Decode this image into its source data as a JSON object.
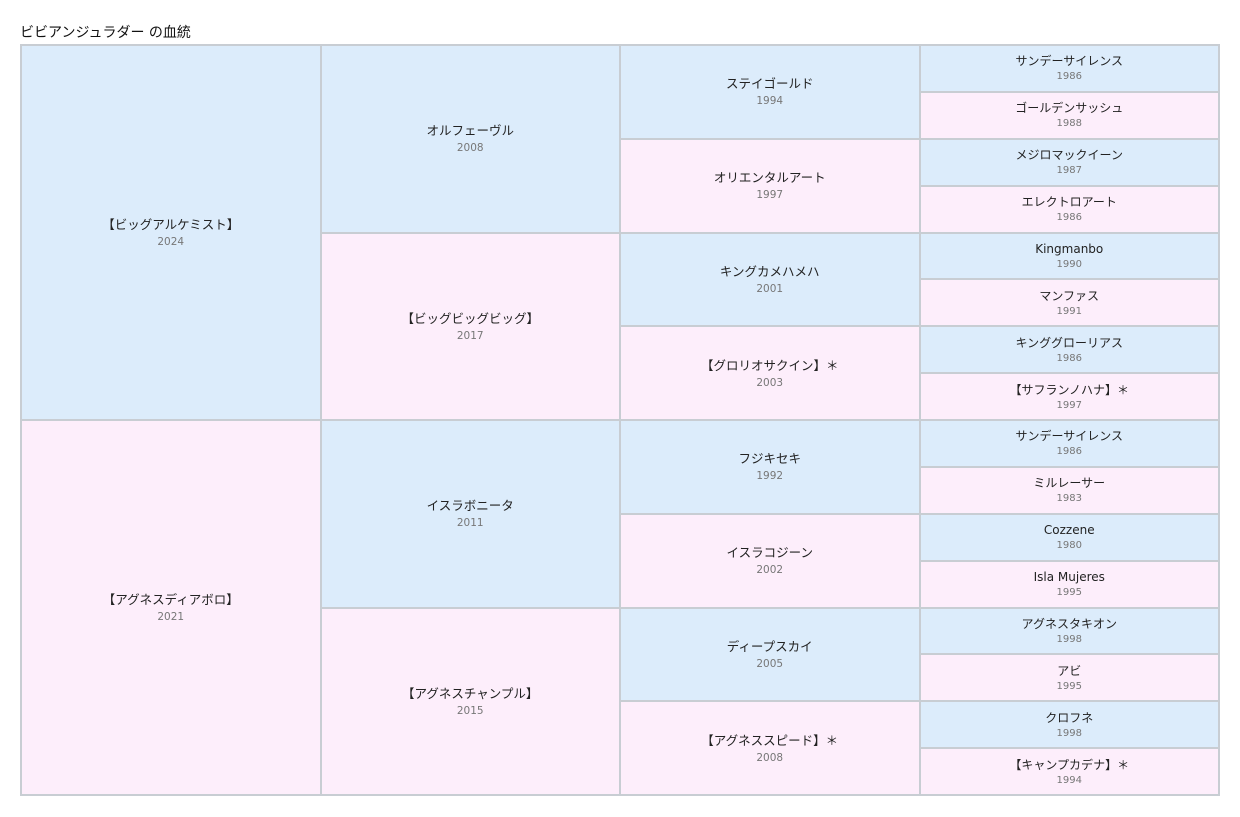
{
  "title": "ビビアンジュラダー の血統",
  "sire": {
    "name": "【ビッグアルケミスト】",
    "year": "2024",
    "sire": {
      "name": "オルフェーヴル",
      "year": "2008",
      "sire": {
        "name": "ステイゴールド",
        "year": "1994",
        "sire": {
          "name": "サンデーサイレンス",
          "year": "1986"
        },
        "dam": {
          "name": "ゴールデンサッシュ",
          "year": "1988"
        }
      },
      "dam": {
        "name": "オリエンタルアート",
        "year": "1997",
        "sire": {
          "name": "メジロマックイーン",
          "year": "1987"
        },
        "dam": {
          "name": "エレクトロアート",
          "year": "1986"
        }
      }
    },
    "dam": {
      "name": "【ビッグビッグビッグ】",
      "year": "2017",
      "sire": {
        "name": "キングカメハメハ",
        "year": "2001",
        "sire": {
          "name": "Kingmanbo",
          "year": "1990"
        },
        "dam": {
          "name": "マンファス",
          "year": "1991"
        }
      },
      "dam": {
        "name": "【グロリオサクイン】＊",
        "year": "2003",
        "sire": {
          "name": "キンググローリアス",
          "year": "1986"
        },
        "dam": {
          "name": "【サフランノハナ】＊",
          "year": "1997"
        }
      }
    }
  },
  "dam": {
    "name": "【アグネスディアボロ】",
    "year": "2021",
    "sire": {
      "name": "イスラボニータ",
      "year": "2011",
      "sire": {
        "name": "フジキセキ",
        "year": "1992",
        "sire": {
          "name": "サンデーサイレンス",
          "year": "1986"
        },
        "dam": {
          "name": "ミルレーサー",
          "year": "1983"
        }
      },
      "dam": {
        "name": "イスラコジーン",
        "year": "2002",
        "sire": {
          "name": "Cozzene",
          "year": "1980"
        },
        "dam": {
          "name": "Isla Mujeres",
          "year": "1995"
        }
      }
    },
    "dam": {
      "name": "【アグネスチャンプル】",
      "year": "2015",
      "sire": {
        "name": "ディープスカイ",
        "year": "2005",
        "sire": {
          "name": "アグネスタキオン",
          "year": "1998"
        },
        "dam": {
          "name": "アビ",
          "year": "1995"
        }
      },
      "dam": {
        "name": "【アグネススピード】＊",
        "year": "2008",
        "sire": {
          "name": "クロフネ",
          "year": "1998"
        },
        "dam": {
          "name": "【キャンプカデナ】＊",
          "year": "1994"
        }
      }
    }
  },
  "colors": {
    "male": "#dcecfb",
    "female": "#fdeefb",
    "border": "#c8cdd3"
  }
}
